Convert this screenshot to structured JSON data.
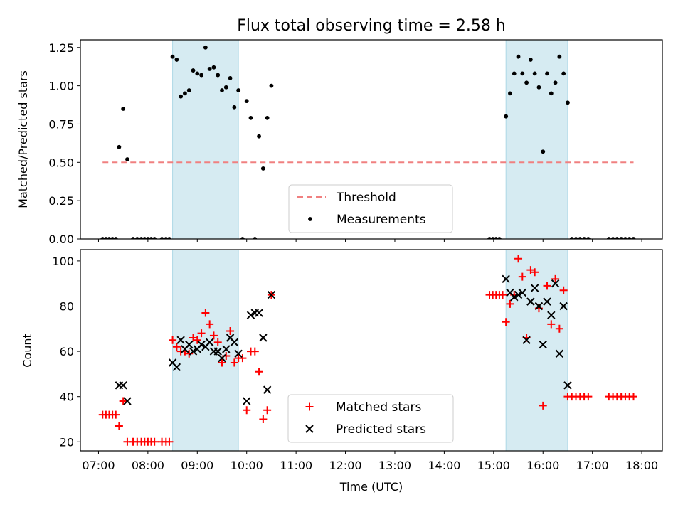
{
  "chart_data": [
    {
      "type": "scatter",
      "title": "Flux total observing time = 2.58 h",
      "xlabel": "",
      "ylabel": "Matched/Predicted stars",
      "xlim": [
        "06:38",
        "18:25"
      ],
      "ylim": [
        0,
        1.3
      ],
      "yticks": [
        "0.00",
        "0.25",
        "0.50",
        "0.75",
        "1.00",
        "1.25"
      ],
      "grid": false,
      "legend_position": "lower-center",
      "shaded_regions": [
        [
          "08:30",
          "09:50"
        ],
        [
          "15:15",
          "16:30"
        ]
      ],
      "series": [
        {
          "name": "Threshold",
          "style": "dashed-line",
          "color": "#f08080",
          "points": [
            [
              "07:05",
              0.5
            ],
            [
              "17:50",
              0.5
            ]
          ]
        },
        {
          "name": "Measurements",
          "style": "dot",
          "color": "#000000",
          "points": [
            [
              "07:05",
              0
            ],
            [
              "07:09",
              0
            ],
            [
              "07:13",
              0
            ],
            [
              "07:17",
              0
            ],
            [
              "07:21",
              0
            ],
            [
              "07:25",
              0.6
            ],
            [
              "07:30",
              0.85
            ],
            [
              "07:35",
              0.52
            ],
            [
              "07:42",
              0
            ],
            [
              "07:47",
              0
            ],
            [
              "07:52",
              0
            ],
            [
              "07:56",
              0
            ],
            [
              "08:00",
              0
            ],
            [
              "08:04",
              0
            ],
            [
              "08:08",
              0
            ],
            [
              "08:17",
              0
            ],
            [
              "08:22",
              0
            ],
            [
              "08:26",
              0
            ],
            [
              "08:30",
              1.19
            ],
            [
              "08:35",
              1.17
            ],
            [
              "08:40",
              0.93
            ],
            [
              "08:45",
              0.95
            ],
            [
              "08:50",
              0.97
            ],
            [
              "08:55",
              1.1
            ],
            [
              "09:00",
              1.08
            ],
            [
              "09:05",
              1.07
            ],
            [
              "09:10",
              1.25
            ],
            [
              "09:15",
              1.11
            ],
            [
              "09:20",
              1.12
            ],
            [
              "09:25",
              1.07
            ],
            [
              "09:30",
              0.97
            ],
            [
              "09:35",
              0.99
            ],
            [
              "09:40",
              1.05
            ],
            [
              "09:45",
              0.86
            ],
            [
              "09:50",
              0.97
            ],
            [
              "09:55",
              0
            ],
            [
              "10:00",
              0.9
            ],
            [
              "10:05",
              0.79
            ],
            [
              "10:10",
              0
            ],
            [
              "10:15",
              0.67
            ],
            [
              "10:20",
              0.46
            ],
            [
              "10:25",
              0.79
            ],
            [
              "10:30",
              1.0
            ],
            [
              "14:55",
              0
            ],
            [
              "14:59",
              0
            ],
            [
              "15:03",
              0
            ],
            [
              "15:07",
              0
            ],
            [
              "15:15",
              0.8
            ],
            [
              "15:20",
              0.95
            ],
            [
              "15:25",
              1.08
            ],
            [
              "15:30",
              1.19
            ],
            [
              "15:35",
              1.08
            ],
            [
              "15:40",
              1.02
            ],
            [
              "15:45",
              1.17
            ],
            [
              "15:50",
              1.08
            ],
            [
              "15:55",
              0.99
            ],
            [
              "16:00",
              0.57
            ],
            [
              "16:05",
              1.08
            ],
            [
              "16:10",
              0.95
            ],
            [
              "16:15",
              1.02
            ],
            [
              "16:20",
              1.19
            ],
            [
              "16:25",
              1.08
            ],
            [
              "16:30",
              0.89
            ],
            [
              "16:35",
              0
            ],
            [
              "16:40",
              0
            ],
            [
              "16:45",
              0
            ],
            [
              "16:50",
              0
            ],
            [
              "16:55",
              0
            ],
            [
              "17:20",
              0
            ],
            [
              "17:25",
              0
            ],
            [
              "17:30",
              0
            ],
            [
              "17:35",
              0
            ],
            [
              "17:40",
              0
            ],
            [
              "17:45",
              0
            ],
            [
              "17:50",
              0
            ]
          ]
        }
      ]
    },
    {
      "type": "scatter",
      "title": "",
      "xlabel": "Time (UTC)",
      "ylabel": "Count",
      "xlim": [
        "06:38",
        "18:25"
      ],
      "ylim": [
        16,
        105
      ],
      "xticks": [
        "07:00",
        "08:00",
        "09:00",
        "10:00",
        "11:00",
        "12:00",
        "13:00",
        "14:00",
        "15:00",
        "16:00",
        "17:00",
        "18:00"
      ],
      "yticks": [
        "20",
        "40",
        "60",
        "80",
        "100"
      ],
      "grid": false,
      "legend_position": "lower-center",
      "shaded_regions": [
        [
          "08:30",
          "09:50"
        ],
        [
          "15:15",
          "16:30"
        ]
      ],
      "series": [
        {
          "name": "Matched stars",
          "style": "plus",
          "color": "#ff0000",
          "points": [
            [
              "07:05",
              32
            ],
            [
              "07:09",
              32
            ],
            [
              "07:13",
              32
            ],
            [
              "07:17",
              32
            ],
            [
              "07:21",
              32
            ],
            [
              "07:25",
              27
            ],
            [
              "07:30",
              38
            ],
            [
              "07:35",
              20
            ],
            [
              "07:42",
              20
            ],
            [
              "07:47",
              20
            ],
            [
              "07:52",
              20
            ],
            [
              "07:56",
              20
            ],
            [
              "08:00",
              20
            ],
            [
              "08:04",
              20
            ],
            [
              "08:08",
              20
            ],
            [
              "08:17",
              20
            ],
            [
              "08:22",
              20
            ],
            [
              "08:26",
              20
            ],
            [
              "08:30",
              65
            ],
            [
              "08:35",
              62
            ],
            [
              "08:40",
              60
            ],
            [
              "08:45",
              60
            ],
            [
              "08:50",
              59
            ],
            [
              "08:55",
              66
            ],
            [
              "09:00",
              65
            ],
            [
              "09:05",
              68
            ],
            [
              "09:10",
              77
            ],
            [
              "09:15",
              72
            ],
            [
              "09:20",
              67
            ],
            [
              "09:25",
              64
            ],
            [
              "09:30",
              55
            ],
            [
              "09:35",
              58
            ],
            [
              "09:40",
              69
            ],
            [
              "09:45",
              55
            ],
            [
              "09:50",
              57
            ],
            [
              "09:55",
              57
            ],
            [
              "10:00",
              34
            ],
            [
              "10:05",
              60
            ],
            [
              "10:10",
              60
            ],
            [
              "10:15",
              51
            ],
            [
              "10:20",
              30
            ],
            [
              "10:25",
              34
            ],
            [
              "10:30",
              85
            ],
            [
              "14:55",
              85
            ],
            [
              "14:59",
              85
            ],
            [
              "15:03",
              85
            ],
            [
              "15:07",
              85
            ],
            [
              "15:11",
              85
            ],
            [
              "15:15",
              73
            ],
            [
              "15:20",
              81
            ],
            [
              "15:25",
              85
            ],
            [
              "15:30",
              101
            ],
            [
              "15:35",
              93
            ],
            [
              "15:40",
              66
            ],
            [
              "15:45",
              96
            ],
            [
              "15:50",
              95
            ],
            [
              "15:55",
              79
            ],
            [
              "16:00",
              36
            ],
            [
              "16:05",
              89
            ],
            [
              "16:10",
              72
            ],
            [
              "16:15",
              92
            ],
            [
              "16:20",
              70
            ],
            [
              "16:25",
              87
            ],
            [
              "16:30",
              40
            ],
            [
              "16:35",
              40
            ],
            [
              "16:40",
              40
            ],
            [
              "16:45",
              40
            ],
            [
              "16:50",
              40
            ],
            [
              "16:55",
              40
            ],
            [
              "17:20",
              40
            ],
            [
              "17:25",
              40
            ],
            [
              "17:30",
              40
            ],
            [
              "17:35",
              40
            ],
            [
              "17:40",
              40
            ],
            [
              "17:45",
              40
            ],
            [
              "17:50",
              40
            ]
          ]
        },
        {
          "name": "Predicted stars",
          "style": "cross",
          "color": "#000000",
          "points": [
            [
              "07:25",
              45
            ],
            [
              "07:30",
              45
            ],
            [
              "07:35",
              38
            ],
            [
              "08:30",
              55
            ],
            [
              "08:35",
              53
            ],
            [
              "08:40",
              65
            ],
            [
              "08:45",
              61
            ],
            [
              "08:50",
              63
            ],
            [
              "08:55",
              60
            ],
            [
              "09:00",
              61
            ],
            [
              "09:05",
              63
            ],
            [
              "09:10",
              62
            ],
            [
              "09:15",
              64
            ],
            [
              "09:20",
              60
            ],
            [
              "09:25",
              60
            ],
            [
              "09:30",
              57
            ],
            [
              "09:35",
              61
            ],
            [
              "09:40",
              66
            ],
            [
              "09:45",
              64
            ],
            [
              "09:50",
              59
            ],
            [
              "10:00",
              38
            ],
            [
              "10:05",
              76
            ],
            [
              "10:10",
              77
            ],
            [
              "10:15",
              77
            ],
            [
              "10:20",
              66
            ],
            [
              "10:25",
              43
            ],
            [
              "10:30",
              85
            ],
            [
              "15:15",
              92
            ],
            [
              "15:20",
              86
            ],
            [
              "15:25",
              84
            ],
            [
              "15:30",
              85
            ],
            [
              "15:35",
              86
            ],
            [
              "15:40",
              65
            ],
            [
              "15:45",
              82
            ],
            [
              "15:50",
              88
            ],
            [
              "15:55",
              80
            ],
            [
              "16:00",
              63
            ],
            [
              "16:05",
              82
            ],
            [
              "16:10",
              76
            ],
            [
              "16:15",
              90
            ],
            [
              "16:20",
              59
            ],
            [
              "16:25",
              80
            ],
            [
              "16:30",
              45
            ]
          ]
        }
      ]
    }
  ]
}
